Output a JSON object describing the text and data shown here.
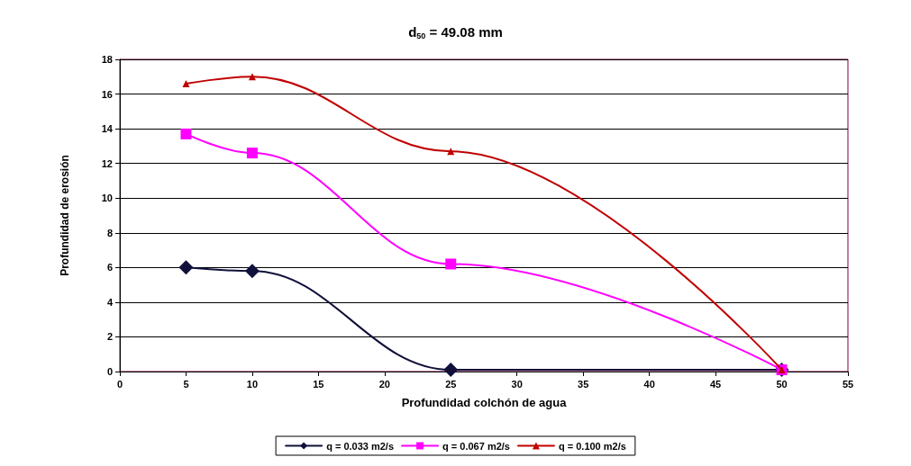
{
  "chart_data": {
    "type": "line",
    "title": "d$_{50}$ = 49.08 mm",
    "xlabel": "Profundidad colchón de agua",
    "ylabel": "Profundidad de erosión",
    "x": [
      5,
      10,
      25,
      50
    ],
    "series": [
      {
        "name": "q = 0.033 m2/s",
        "color": "#10103a",
        "marker": "diamond",
        "values": [
          6.0,
          5.8,
          0.1,
          0.1
        ]
      },
      {
        "name": "q = 0.067 m2/s",
        "color": "#ff00ff",
        "marker": "square",
        "values": [
          13.7,
          12.6,
          6.2,
          0.1
        ]
      },
      {
        "name": "q = 0.100 m2/s",
        "color": "#c00000",
        "marker": "triangle",
        "values": [
          16.6,
          17.0,
          12.7,
          0.1
        ]
      }
    ],
    "xlim": [
      0,
      55
    ],
    "xticks": [
      0,
      5,
      10,
      15,
      20,
      25,
      30,
      35,
      40,
      45,
      50,
      55
    ],
    "ylim": [
      0,
      18
    ],
    "yticks": [
      0,
      2,
      4,
      6,
      8,
      10,
      12,
      14,
      16,
      18
    ],
    "grid": "y",
    "legend": "bottom",
    "line_style": "solid"
  }
}
